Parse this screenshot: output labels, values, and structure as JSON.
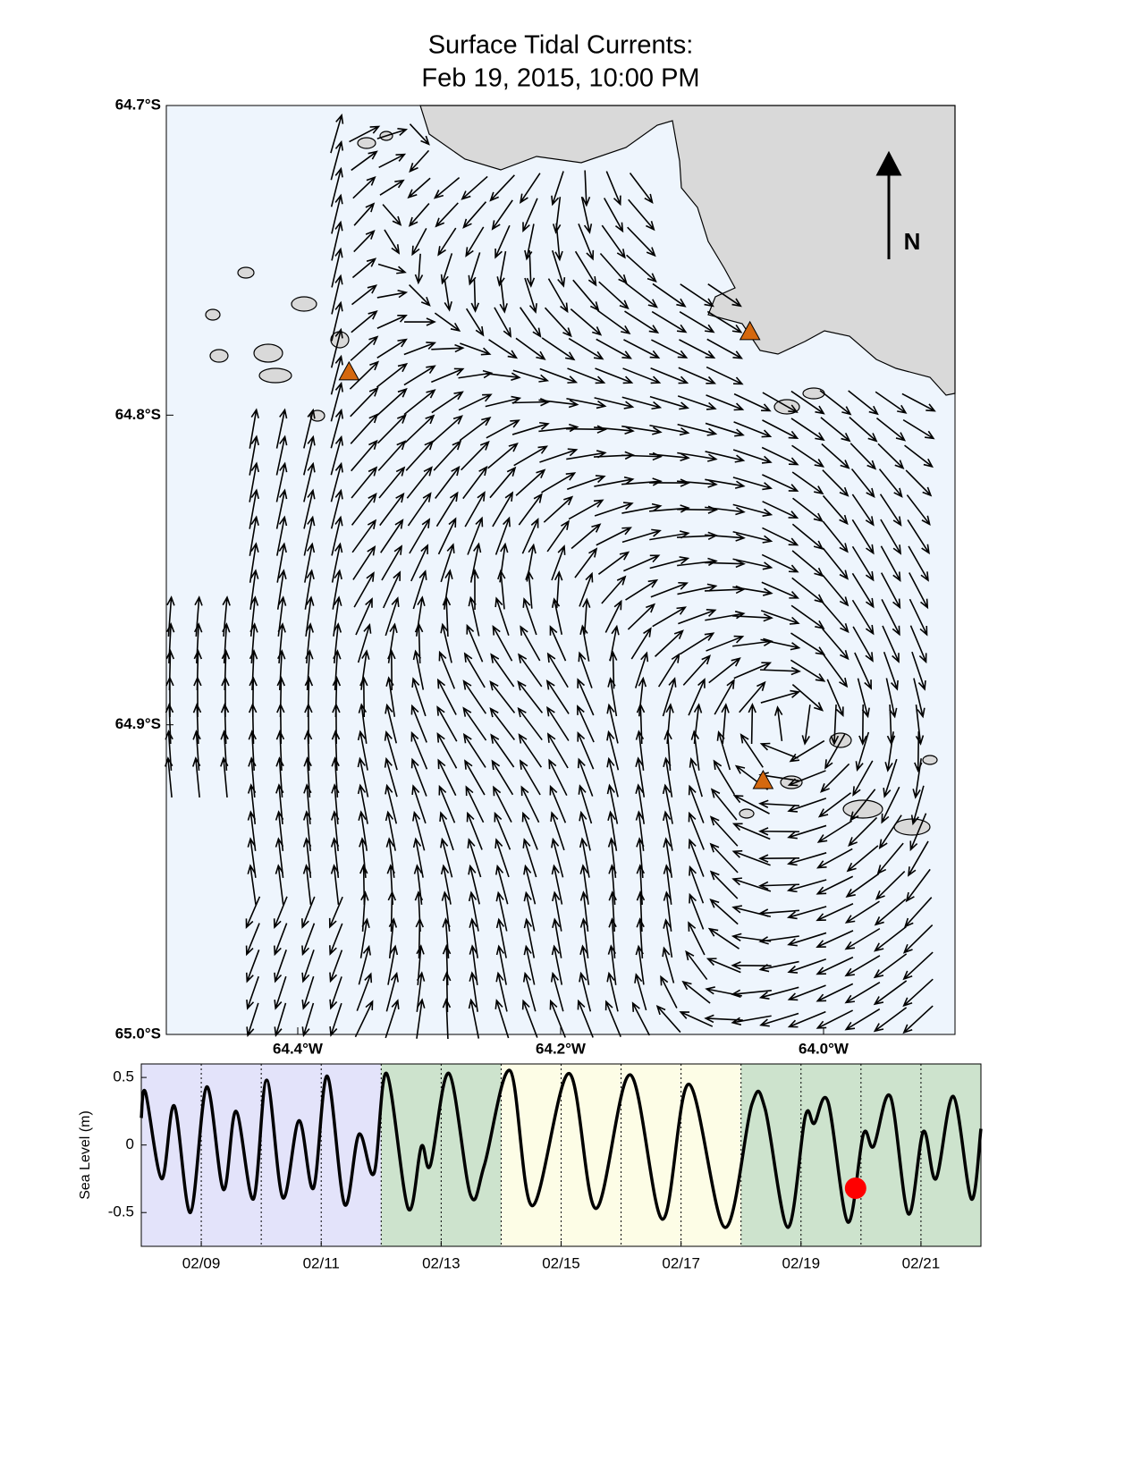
{
  "chart_data": [
    {
      "type": "quiver-map",
      "title": "Surface Tidal Currents:",
      "subtitle": "Feb 19, 2015, 10:00 PM",
      "north_label": "N",
      "xlim": [
        -64.5,
        -63.9
      ],
      "ylim": [
        -65.0,
        -64.7
      ],
      "xticks": [
        {
          "value": -64.4,
          "label": "64.4°W"
        },
        {
          "value": -64.2,
          "label": "64.2°W"
        },
        {
          "value": -64.0,
          "label": "64.0°W"
        }
      ],
      "yticks": [
        {
          "value": -64.7,
          "label": "64.7°S"
        },
        {
          "value": -64.8,
          "label": "64.8°S"
        },
        {
          "value": -64.9,
          "label": "64.9°S"
        },
        {
          "value": -65.0,
          "label": "65.0°S"
        }
      ],
      "stations": {
        "color": "#d4680f",
        "lon": [
          -64.361,
          -64.056,
          -64.046
        ],
        "lat": [
          -64.786,
          -64.773,
          -64.918
        ]
      }
    },
    {
      "type": "line",
      "ylabel": "Sea Level (m)",
      "xlim": [
        8,
        22
      ],
      "ylim": [
        -0.75,
        0.6
      ],
      "xticks": [
        {
          "value": 9,
          "label": "02/09"
        },
        {
          "value": 11,
          "label": "02/11"
        },
        {
          "value": 13,
          "label": "02/13"
        },
        {
          "value": 15,
          "label": "02/15"
        },
        {
          "value": 17,
          "label": "02/17"
        },
        {
          "value": 19,
          "label": "02/19"
        },
        {
          "value": 21,
          "label": "02/21"
        }
      ],
      "yticks": [
        0.5,
        0,
        -0.5
      ],
      "xgrid": [
        9,
        10,
        11,
        12,
        13,
        14,
        15,
        16,
        17,
        18,
        19,
        20,
        21
      ],
      "bands": [
        {
          "start": 8,
          "end": 12,
          "color": "#e3e3fa"
        },
        {
          "start": 12,
          "end": 14,
          "color": "#cde3cd"
        },
        {
          "start": 14,
          "end": 18,
          "color": "#fdfde6"
        },
        {
          "start": 18,
          "end": 22,
          "color": "#cde3cd"
        }
      ],
      "series": [
        {
          "color": "#000000",
          "x": [
            8.0,
            8.07,
            8.34,
            8.55,
            8.82,
            9.09,
            9.37,
            9.58,
            9.87,
            10.09,
            10.36,
            10.63,
            10.87,
            11.1,
            11.39,
            11.63,
            11.88,
            12.09,
            12.45,
            12.67,
            12.82,
            13.13,
            13.49,
            13.72,
            14.15,
            14.52,
            15.13,
            15.58,
            16.15,
            16.69,
            17.13,
            17.73,
            18.18,
            18.4,
            18.78,
            19.07,
            19.22,
            19.45,
            19.78,
            20.04,
            20.21,
            20.49,
            20.79,
            21.04,
            21.25,
            21.54,
            21.84,
            22.0
          ],
          "values": [
            0.2,
            0.39,
            -0.25,
            0.29,
            -0.5,
            0.43,
            -0.33,
            0.25,
            -0.4,
            0.48,
            -0.39,
            0.18,
            -0.32,
            0.51,
            -0.44,
            0.08,
            -0.21,
            0.53,
            -0.47,
            -0.01,
            -0.15,
            0.53,
            -0.37,
            -0.15,
            0.55,
            -0.45,
            0.53,
            -0.47,
            0.52,
            -0.55,
            0.45,
            -0.61,
            0.3,
            0.27,
            -0.61,
            0.21,
            0.16,
            0.32,
            -0.57,
            0.08,
            -0.01,
            0.36,
            -0.51,
            0.1,
            -0.25,
            0.36,
            -0.4,
            0.12
          ]
        }
      ],
      "marker": {
        "x": 19.91,
        "y": -0.32,
        "color": "#ff0000"
      }
    }
  ]
}
